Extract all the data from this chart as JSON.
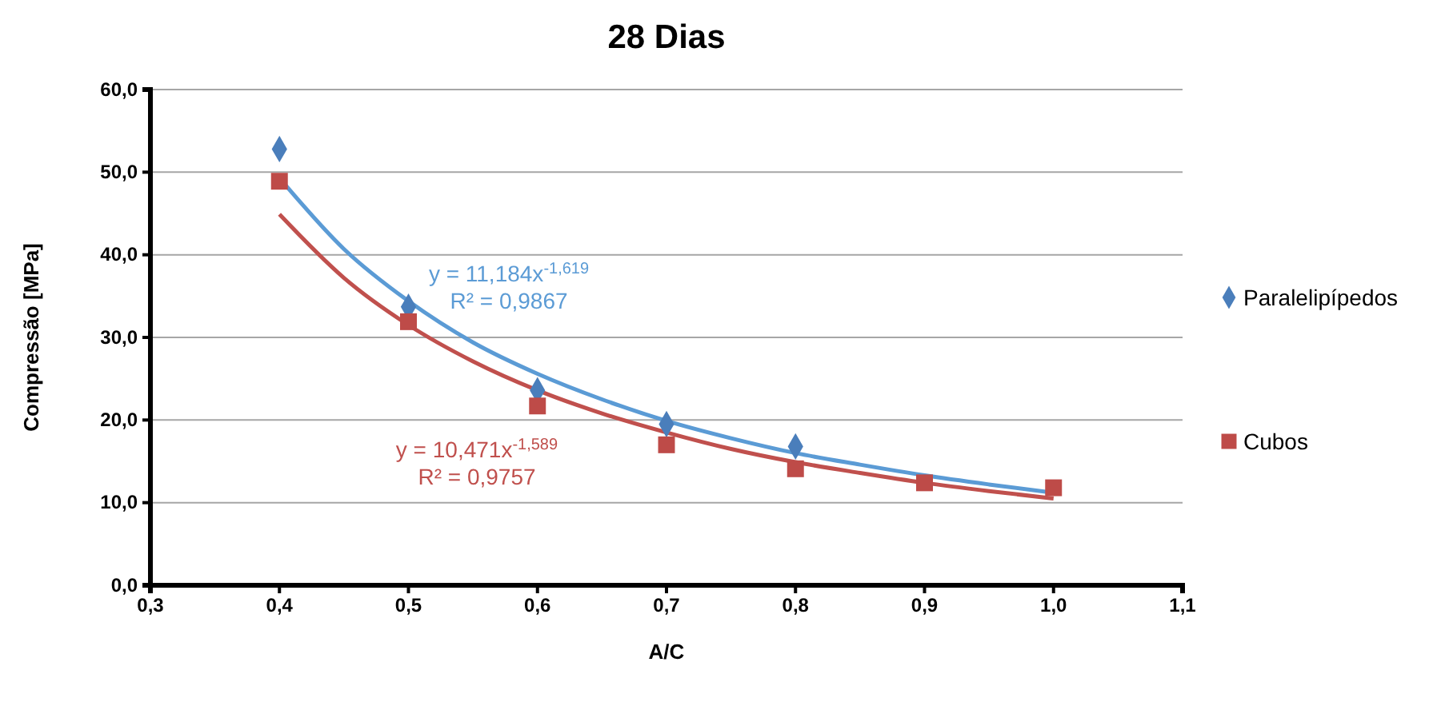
{
  "chart_data": {
    "type": "scatter",
    "title": "28 Dias",
    "xlabel": "A/C",
    "ylabel": "Compressão [MPa]",
    "xlim": [
      0.3,
      1.1
    ],
    "xticks": [
      {
        "value": 0.3,
        "label": "0,3"
      },
      {
        "value": 0.4,
        "label": "0,4"
      },
      {
        "value": 0.5,
        "label": "0,5"
      },
      {
        "value": 0.6,
        "label": "0,6"
      },
      {
        "value": 0.7,
        "label": "0,7"
      },
      {
        "value": 0.8,
        "label": "0,8"
      },
      {
        "value": 0.9,
        "label": "0,9"
      },
      {
        "value": 1.0,
        "label": "1,0"
      },
      {
        "value": 1.1,
        "label": "1,1"
      }
    ],
    "ylim": [
      0,
      60
    ],
    "yticks": [
      {
        "value": 0,
        "label": "0,0"
      },
      {
        "value": 10,
        "label": "10,0"
      },
      {
        "value": 20,
        "label": "20,0"
      },
      {
        "value": 30,
        "label": "30,0"
      },
      {
        "value": 40,
        "label": "40,0"
      },
      {
        "value": 50,
        "label": "50,0"
      },
      {
        "value": 60,
        "label": "60,0"
      }
    ],
    "grid": "y",
    "legend": "right",
    "series": [
      {
        "name": "Paralelipípedos",
        "color": "#4a7ebb",
        "marker": "diamond",
        "x": [
          0.4,
          0.5,
          0.6,
          0.7,
          0.8
        ],
        "values": [
          52.8,
          33.7,
          23.6,
          19.5,
          16.8
        ]
      },
      {
        "name": "Cubos",
        "color": "#be4b48",
        "marker": "square",
        "x": [
          0.4,
          0.5,
          0.6,
          0.7,
          0.8,
          0.9,
          1.0
        ],
        "values": [
          48.9,
          31.9,
          21.7,
          17.0,
          14.1,
          12.4,
          11.8
        ]
      },
      {
        "type": "line",
        "color": "#5b9bd5",
        "marker": "none",
        "x": [
          0.4,
          0.45,
          0.5,
          0.55,
          0.6,
          0.65,
          0.7,
          0.75,
          0.8,
          0.85,
          0.9,
          0.95,
          1.0
        ],
        "values": [
          49.3,
          40.7,
          34.4,
          29.4,
          25.6,
          22.5,
          19.9,
          17.8,
          16.0,
          14.6,
          13.3,
          12.2,
          11.2
        ]
      },
      {
        "type": "line",
        "color": "#c0504d",
        "marker": "none",
        "x": [
          0.4,
          0.45,
          0.5,
          0.55,
          0.6,
          0.65,
          0.7,
          0.75,
          0.8,
          0.85,
          0.9,
          0.95,
          1.0
        ],
        "values": [
          44.9,
          37.2,
          31.5,
          27.1,
          23.6,
          20.8,
          18.5,
          16.5,
          14.9,
          13.6,
          12.4,
          11.4,
          10.5
        ]
      }
    ],
    "annotations": [
      "y = 11,184x$^{-1,619}$\nR² = 0,9867",
      "y = 10,471x$^{-1,589}$\nR² = 0,9757"
    ]
  }
}
